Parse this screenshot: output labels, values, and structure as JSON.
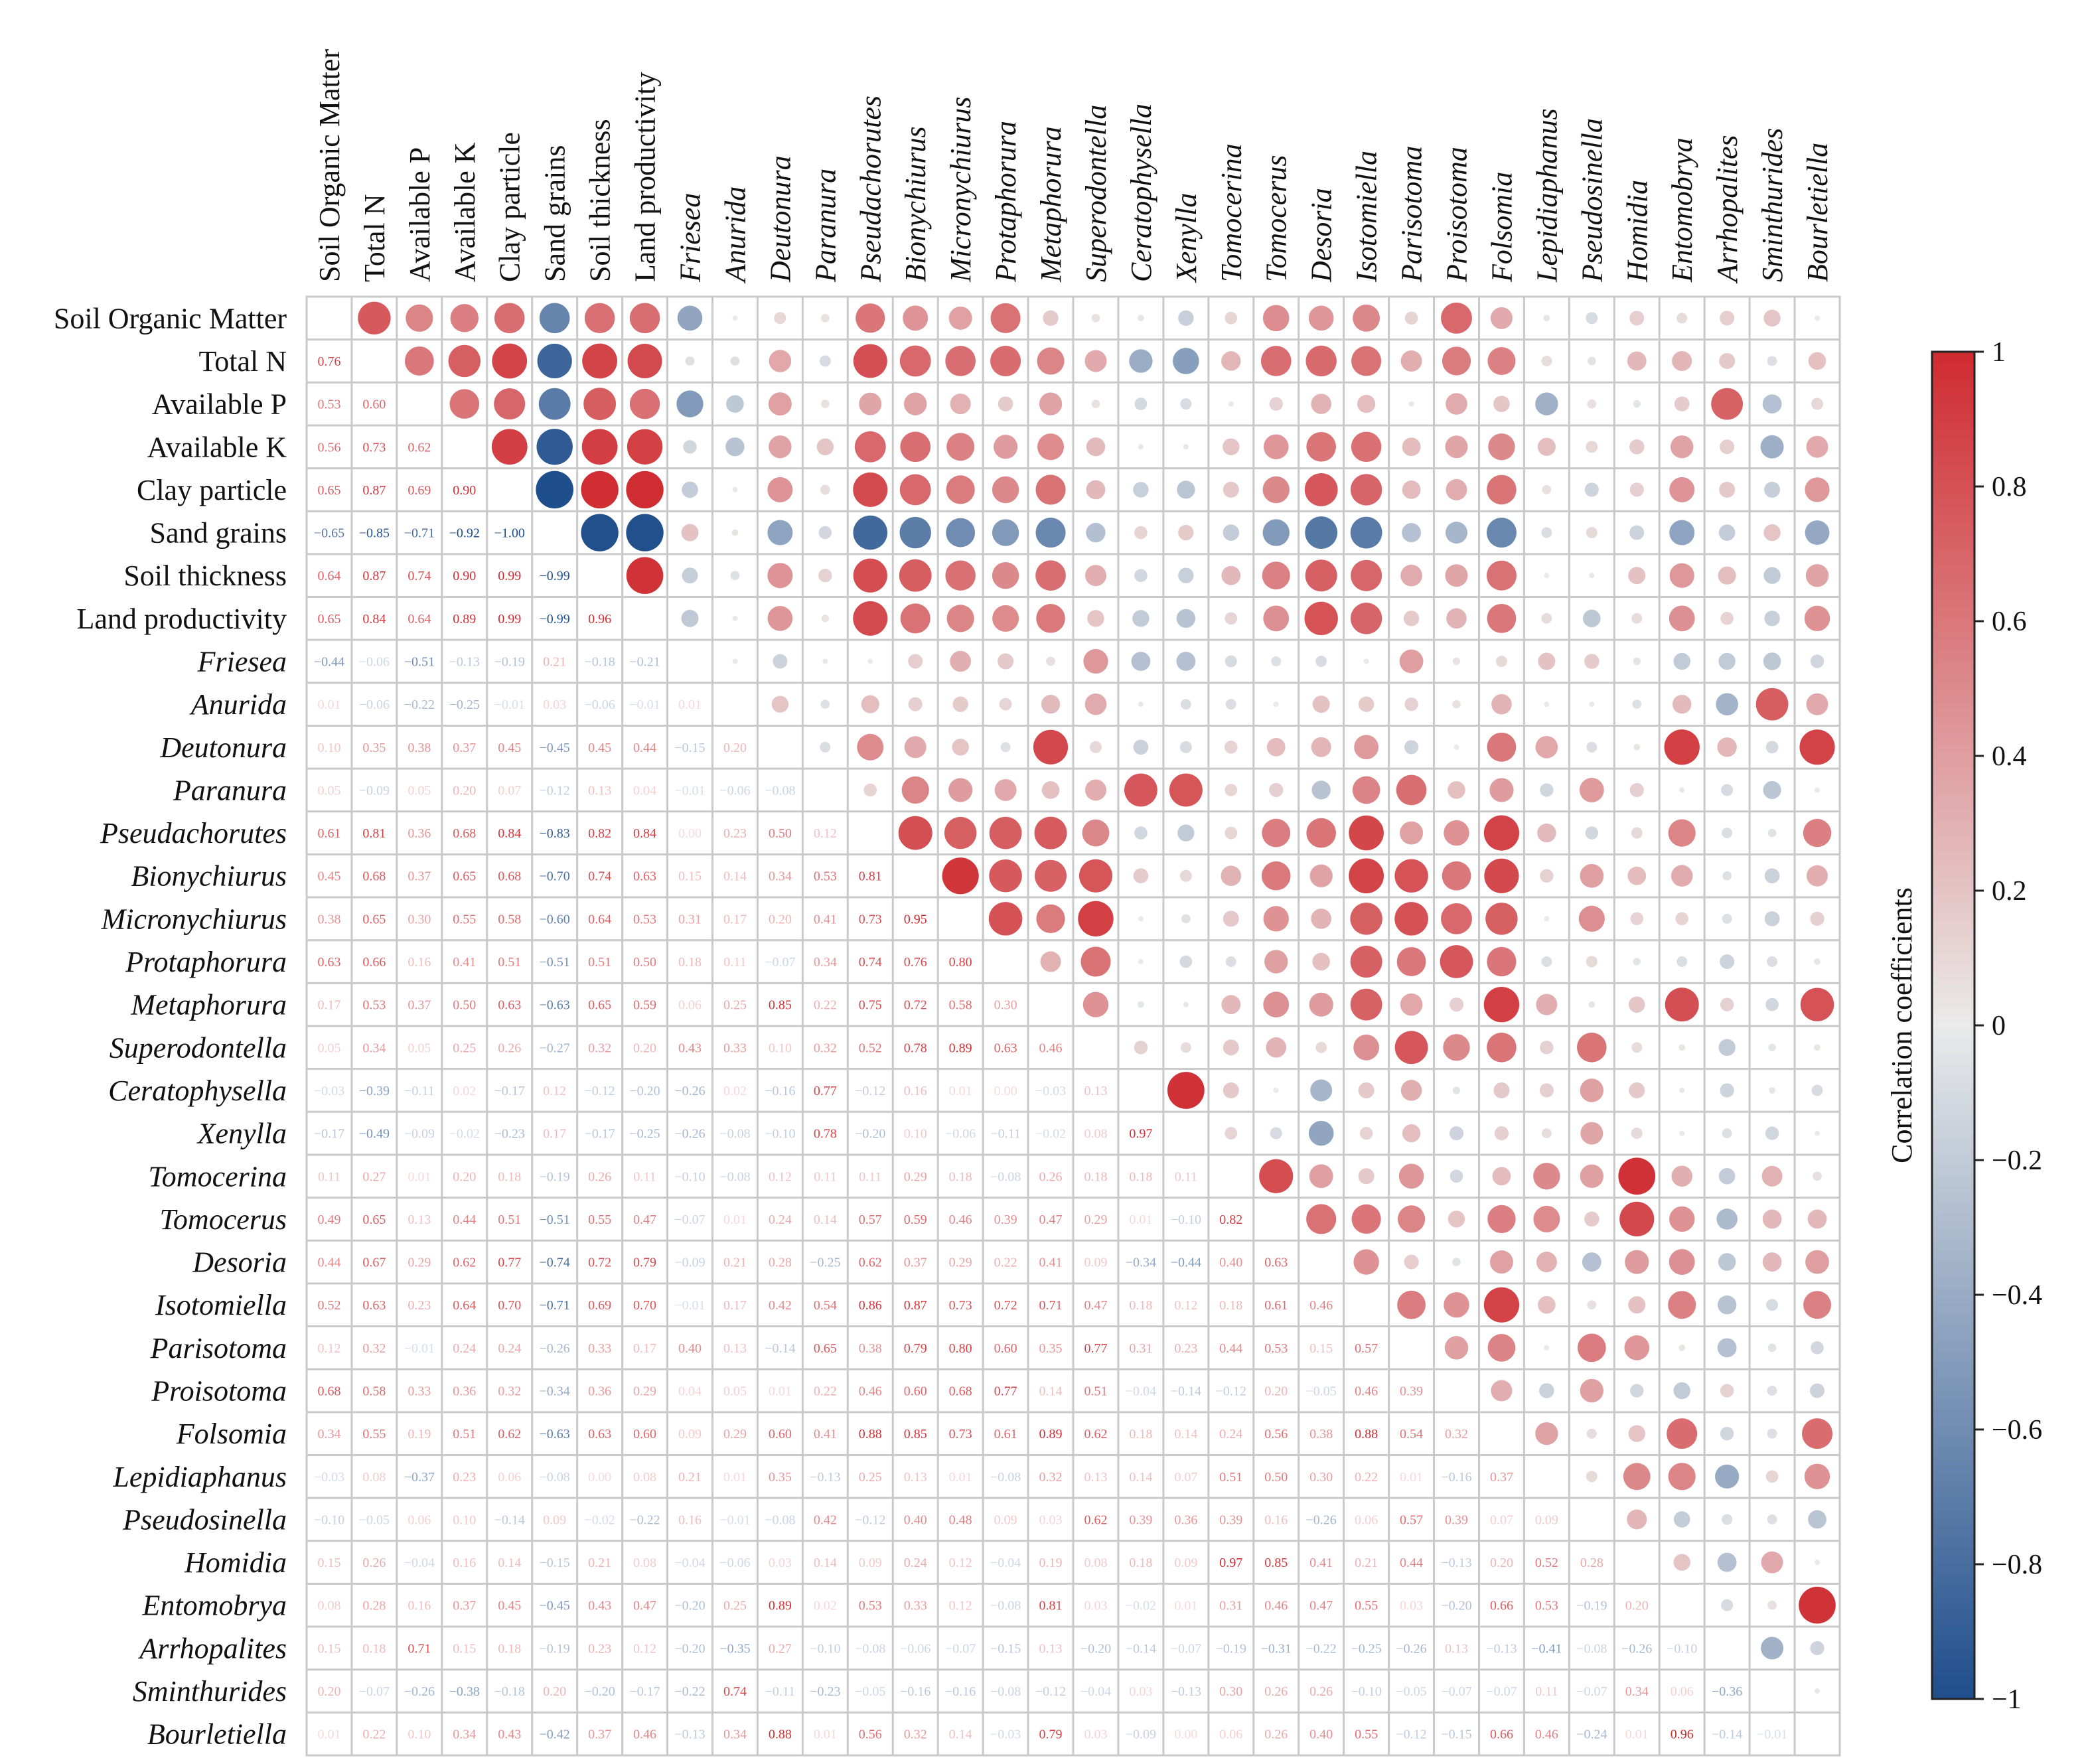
{
  "chart_data": {
    "type": "heatmap",
    "variables": [
      {
        "name": "Soil Organic Matter",
        "italic": false
      },
      {
        "name": "Total N",
        "italic": false
      },
      {
        "name": "Available P",
        "italic": false
      },
      {
        "name": "Available K",
        "italic": false
      },
      {
        "name": "Clay particle",
        "italic": false
      },
      {
        "name": "Sand grains",
        "italic": false
      },
      {
        "name": "Soil thickness",
        "italic": false
      },
      {
        "name": "Land productivity",
        "italic": false
      },
      {
        "name": "Friesea",
        "italic": true
      },
      {
        "name": "Anurida",
        "italic": true
      },
      {
        "name": "Deutonura",
        "italic": true
      },
      {
        "name": "Paranura",
        "italic": true
      },
      {
        "name": "Pseudachorutes",
        "italic": true
      },
      {
        "name": "Bionychiurus",
        "italic": true
      },
      {
        "name": "Micronychiurus",
        "italic": true
      },
      {
        "name": "Protaphorura",
        "italic": true
      },
      {
        "name": "Metaphorura",
        "italic": true
      },
      {
        "name": "Superodontella",
        "italic": true
      },
      {
        "name": "Ceratophysella",
        "italic": true
      },
      {
        "name": "Xenylla",
        "italic": true
      },
      {
        "name": "Tomocerina",
        "italic": true
      },
      {
        "name": "Tomocerus",
        "italic": true
      },
      {
        "name": "Desoria",
        "italic": true
      },
      {
        "name": "Isotomiella",
        "italic": true
      },
      {
        "name": "Parisotoma",
        "italic": true
      },
      {
        "name": "Proisotoma",
        "italic": true
      },
      {
        "name": "Folsomia",
        "italic": true
      },
      {
        "name": "Lepidiaphanus",
        "italic": true
      },
      {
        "name": "Pseudosinella",
        "italic": true
      },
      {
        "name": "Homidia",
        "italic": true
      },
      {
        "name": "Entomobrya",
        "italic": true
      },
      {
        "name": "Arrhopalites",
        "italic": true
      },
      {
        "name": "Sminthurides",
        "italic": true
      },
      {
        "name": "Bourletiella",
        "italic": true
      }
    ],
    "lower_triangle_values": [
      [],
      [
        "0.76"
      ],
      [
        "0.53",
        "0.60"
      ],
      [
        "0.56",
        "0.73",
        "0.62"
      ],
      [
        "0.65",
        "0.87",
        "0.69",
        "0.90"
      ],
      [
        "−0.65",
        "−0.85",
        "−0.71",
        "−0.92",
        "−1.00"
      ],
      [
        "0.64",
        "0.87",
        "0.74",
        "0.90",
        "0.99",
        "−0.99"
      ],
      [
        "0.65",
        "0.84",
        "0.64",
        "0.89",
        "0.99",
        "−0.99",
        "0.96"
      ],
      [
        "−0.44",
        "−0.06",
        "−0.51",
        "−0.13",
        "−0.19",
        "0.21",
        "−0.18",
        "−0.21"
      ],
      [
        "0.01",
        "−0.06",
        "−0.22",
        "−0.25",
        "−0.01",
        "0.03",
        "−0.06",
        "−0.01",
        "0.01"
      ],
      [
        "0.10",
        "0.35",
        "0.38",
        "0.37",
        "0.45",
        "−0.45",
        "0.45",
        "0.44",
        "−0.15",
        "0.20"
      ],
      [
        "0.05",
        "−0.09",
        "0.05",
        "0.20",
        "0.07",
        "−0.12",
        "0.13",
        "0.04",
        "−0.01",
        "−0.06",
        "−0.08"
      ],
      [
        "0.61",
        "0.81",
        "0.36",
        "0.68",
        "0.84",
        "−0.83",
        "0.82",
        "0.84",
        "0.00",
        "0.23",
        "0.50",
        "0.12"
      ],
      [
        "0.45",
        "0.68",
        "0.37",
        "0.65",
        "0.68",
        "−0.70",
        "0.74",
        "0.63",
        "0.15",
        "0.14",
        "0.34",
        "0.53",
        "0.81"
      ],
      [
        "0.38",
        "0.65",
        "0.30",
        "0.55",
        "0.58",
        "−0.60",
        "0.64",
        "0.53",
        "0.31",
        "0.17",
        "0.20",
        "0.41",
        "0.73",
        "0.95"
      ],
      [
        "0.63",
        "0.66",
        "0.16",
        "0.41",
        "0.51",
        "−0.51",
        "0.51",
        "0.50",
        "0.18",
        "0.11",
        "−0.07",
        "0.34",
        "0.74",
        "0.76",
        "0.80"
      ],
      [
        "0.17",
        "0.53",
        "0.37",
        "0.50",
        "0.63",
        "−0.63",
        "0.65",
        "0.59",
        "0.06",
        "0.25",
        "0.85",
        "0.22",
        "0.75",
        "0.72",
        "0.58",
        "0.30"
      ],
      [
        "0.05",
        "0.34",
        "0.05",
        "0.25",
        "0.26",
        "−0.27",
        "0.32",
        "0.20",
        "0.43",
        "0.33",
        "0.10",
        "0.32",
        "0.52",
        "0.78",
        "0.89",
        "0.63",
        "0.46"
      ],
      [
        "−0.03",
        "−0.39",
        "−0.11",
        "0.02",
        "−0.17",
        "0.12",
        "−0.12",
        "−0.20",
        "−0.26",
        "0.02",
        "−0.16",
        "0.77",
        "−0.12",
        "0.16",
        "0.01",
        "0.00",
        "−0.03",
        "0.13"
      ],
      [
        "−0.17",
        "−0.49",
        "−0.09",
        "−0.02",
        "−0.23",
        "0.17",
        "−0.17",
        "−0.25",
        "−0.26",
        "−0.08",
        "−0.10",
        "0.78",
        "−0.20",
        "0.10",
        "−0.06",
        "−0.11",
        "−0.02",
        "0.08",
        "0.97"
      ],
      [
        "0.11",
        "0.27",
        "0.01",
        "0.20",
        "0.18",
        "−0.19",
        "0.26",
        "0.11",
        "−0.10",
        "−0.08",
        "0.12",
        "0.11",
        "0.11",
        "0.29",
        "0.18",
        "−0.08",
        "0.26",
        "0.18",
        "0.18",
        "0.11"
      ],
      [
        "0.49",
        "0.65",
        "0.13",
        "0.44",
        "0.51",
        "−0.51",
        "0.55",
        "0.47",
        "−0.07",
        "0.01",
        "0.24",
        "0.14",
        "0.57",
        "0.59",
        "0.46",
        "0.39",
        "0.47",
        "0.29",
        "0.01",
        "−0.10",
        "0.82"
      ],
      [
        "0.44",
        "0.67",
        "0.29",
        "0.62",
        "0.77",
        "−0.74",
        "0.72",
        "0.79",
        "−0.09",
        "0.21",
        "0.28",
        "−0.25",
        "0.62",
        "0.37",
        "0.29",
        "0.22",
        "0.41",
        "0.09",
        "−0.34",
        "−0.44",
        "0.40",
        "0.63"
      ],
      [
        "0.52",
        "0.63",
        "0.23",
        "0.64",
        "0.70",
        "−0.71",
        "0.69",
        "0.70",
        "−0.01",
        "0.17",
        "0.42",
        "0.54",
        "0.86",
        "0.87",
        "0.73",
        "0.72",
        "0.71",
        "0.47",
        "0.18",
        "0.12",
        "0.18",
        "0.61",
        "0.46"
      ],
      [
        "0.12",
        "0.32",
        "−0.01",
        "0.24",
        "0.24",
        "−0.26",
        "0.33",
        "0.17",
        "0.40",
        "0.13",
        "−0.14",
        "0.65",
        "0.38",
        "0.79",
        "0.80",
        "0.60",
        "0.35",
        "0.77",
        "0.31",
        "0.23",
        "0.44",
        "0.53",
        "0.15",
        "0.57"
      ],
      [
        "0.68",
        "0.58",
        "0.33",
        "0.36",
        "0.32",
        "−0.34",
        "0.36",
        "0.29",
        "0.04",
        "0.05",
        "0.01",
        "0.22",
        "0.46",
        "0.60",
        "0.68",
        "0.77",
        "0.14",
        "0.51",
        "−0.04",
        "−0.14",
        "−0.12",
        "0.20",
        "−0.05",
        "0.46",
        "0.39"
      ],
      [
        "0.34",
        "0.55",
        "0.19",
        "0.51",
        "0.62",
        "−0.63",
        "0.63",
        "0.60",
        "0.09",
        "0.29",
        "0.60",
        "0.41",
        "0.88",
        "0.85",
        "0.73",
        "0.61",
        "0.89",
        "0.62",
        "0.18",
        "0.14",
        "0.24",
        "0.56",
        "0.38",
        "0.88",
        "0.54",
        "0.32"
      ],
      [
        "−0.03",
        "0.08",
        "−0.37",
        "0.23",
        "0.06",
        "−0.08",
        "0.00",
        "0.08",
        "0.21",
        "0.01",
        "0.35",
        "−0.13",
        "0.25",
        "0.13",
        "0.01",
        "−0.08",
        "0.32",
        "0.13",
        "0.14",
        "0.07",
        "0.51",
        "0.50",
        "0.30",
        "0.22",
        "0.01",
        "−0.16",
        "0.37"
      ],
      [
        "−0.10",
        "−0.05",
        "0.06",
        "0.10",
        "−0.14",
        "0.09",
        "−0.02",
        "−0.22",
        "0.16",
        "−0.01",
        "−0.08",
        "0.42",
        "−0.12",
        "0.40",
        "0.48",
        "0.09",
        "0.03",
        "0.62",
        "0.39",
        "0.36",
        "0.39",
        "0.16",
        "−0.26",
        "0.06",
        "0.57",
        "0.39",
        "0.07",
        "0.09"
      ],
      [
        "0.15",
        "0.26",
        "−0.04",
        "0.16",
        "0.14",
        "−0.15",
        "0.21",
        "0.08",
        "−0.04",
        "−0.06",
        "0.03",
        "0.14",
        "0.09",
        "0.24",
        "0.12",
        "−0.04",
        "0.19",
        "0.08",
        "0.18",
        "0.09",
        "0.97",
        "0.85",
        "0.41",
        "0.21",
        "0.44",
        "−0.13",
        "0.20",
        "0.52",
        "0.28"
      ],
      [
        "0.08",
        "0.28",
        "0.16",
        "0.37",
        "0.45",
        "−0.45",
        "0.43",
        "0.47",
        "−0.20",
        "0.25",
        "0.89",
        "0.02",
        "0.53",
        "0.33",
        "0.12",
        "−0.08",
        "0.81",
        "0.03",
        "−0.02",
        "0.01",
        "0.31",
        "0.46",
        "0.47",
        "0.55",
        "0.03",
        "−0.20",
        "0.66",
        "0.53",
        "−0.19",
        "0.20"
      ],
      [
        "0.15",
        "0.18",
        "0.71",
        "0.15",
        "0.18",
        "−0.19",
        "0.23",
        "0.12",
        "−0.20",
        "−0.35",
        "0.27",
        "−0.10",
        "−0.08",
        "−0.06",
        "−0.07",
        "−0.15",
        "0.13",
        "−0.20",
        "−0.14",
        "−0.07",
        "−0.19",
        "−0.31",
        "−0.22",
        "−0.25",
        "−0.26",
        "0.13",
        "−0.13",
        "−0.41",
        "−0.08",
        "−0.26",
        "−0.10"
      ],
      [
        "0.20",
        "−0.07",
        "−0.26",
        "−0.38",
        "−0.18",
        "0.20",
        "−0.20",
        "−0.17",
        "−0.22",
        "0.74",
        "−0.11",
        "−0.23",
        "−0.05",
        "−0.16",
        "−0.16",
        "−0.08",
        "−0.12",
        "−0.04",
        "0.03",
        "−0.13",
        "0.30",
        "0.26",
        "0.26",
        "−0.10",
        "−0.05",
        "−0.07",
        "−0.07",
        "0.11",
        "−0.07",
        "0.34",
        "0.06",
        "−0.36"
      ],
      [
        "0.01",
        "0.22",
        "0.10",
        "0.34",
        "0.43",
        "−0.42",
        "0.37",
        "0.46",
        "−0.13",
        "0.34",
        "0.88",
        "0.01",
        "0.56",
        "0.32",
        "0.14",
        "−0.03",
        "0.79",
        "0.03",
        "−0.09",
        "0.00",
        "0.06",
        "0.26",
        "0.40",
        "0.55",
        "−0.12",
        "−0.15",
        "0.66",
        "0.46",
        "−0.24",
        "0.01",
        "0.96",
        "−0.14",
        "−0.01"
      ]
    ],
    "colorbar": {
      "label": "Correlation coefficients",
      "range": [
        -1,
        1
      ],
      "ticks": [
        "1",
        "0.8",
        "0.6",
        "0.4",
        "0.2",
        "0",
        "−0.2",
        "−0.4",
        "−0.6",
        "−0.8",
        "−1"
      ],
      "low_color": "#1f4e8c",
      "mid_color": "#eaeaea",
      "high_color": "#cf2b30"
    },
    "encoding": "upper triangle circles sized and colored by coefficient; lower triangle shows coefficient as text"
  }
}
